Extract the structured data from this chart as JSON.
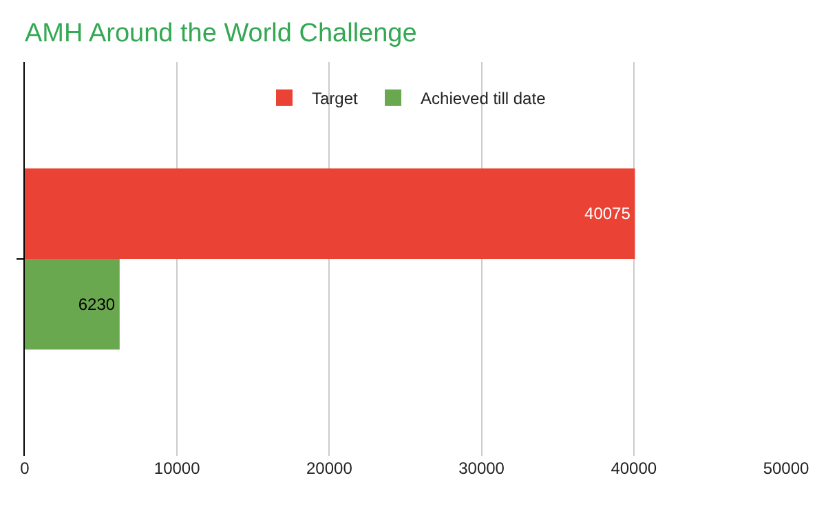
{
  "chart_data": {
    "type": "bar",
    "orientation": "horizontal",
    "title": "AMH Around the World Challenge",
    "categories": [
      null
    ],
    "series": [
      {
        "name": "Target",
        "color": "#ea4335",
        "values": [
          40075
        ]
      },
      {
        "name": "Achieved till date",
        "color": "#6aa84f",
        "values": [
          6230
        ]
      }
    ],
    "xlim": [
      0,
      50000
    ],
    "xticks": [
      0,
      10000,
      20000,
      30000,
      40000,
      50000
    ],
    "grid": "x",
    "legend": "top",
    "data_labels": true,
    "tick_labels": "x"
  }
}
